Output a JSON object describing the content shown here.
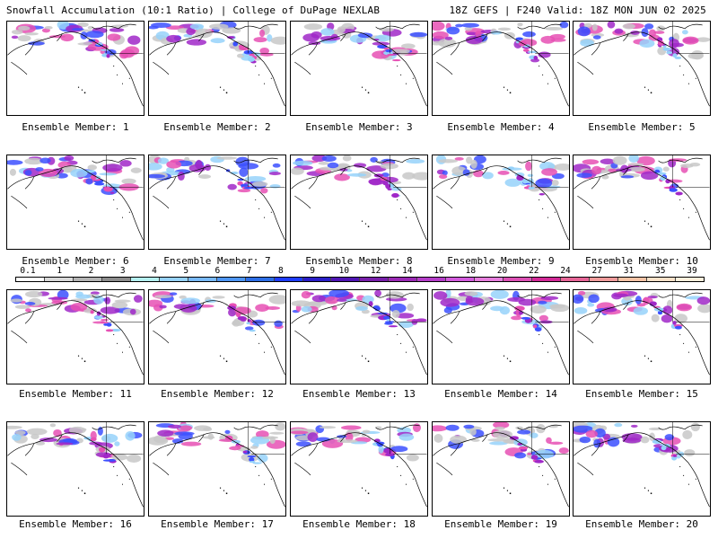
{
  "header": {
    "title_left": "Snowfall Accumulation (10:1 Ratio) | College of DuPage NEXLAB",
    "title_right": "18Z GEFS | F240 Valid: 18Z MON JUN 02 2025"
  },
  "panels": [
    {
      "caption": "Ensemble Member: 1"
    },
    {
      "caption": "Ensemble Member: 2"
    },
    {
      "caption": "Ensemble Member: 3"
    },
    {
      "caption": "Ensemble Member: 4"
    },
    {
      "caption": "Ensemble Member: 5"
    },
    {
      "caption": "Ensemble Member: 6"
    },
    {
      "caption": "Ensemble Member: 7"
    },
    {
      "caption": "Ensemble Member: 8"
    },
    {
      "caption": "Ensemble Member: 9"
    },
    {
      "caption": "Ensemble Member: 10"
    },
    {
      "caption": "Ensemble Member: 11"
    },
    {
      "caption": "Ensemble Member: 12"
    },
    {
      "caption": "Ensemble Member: 13"
    },
    {
      "caption": "Ensemble Member: 14"
    },
    {
      "caption": "Ensemble Member: 15"
    },
    {
      "caption": "Ensemble Member: 16"
    },
    {
      "caption": "Ensemble Member: 17"
    },
    {
      "caption": "Ensemble Member: 18"
    },
    {
      "caption": "Ensemble Member: 19"
    },
    {
      "caption": "Ensemble Member: 20"
    }
  ],
  "colorbar": {
    "labels": [
      "0.1",
      "1",
      "2",
      "3",
      "4",
      "5",
      "6",
      "7",
      "8",
      "9",
      "10",
      "12",
      "14",
      "16",
      "18",
      "20",
      "22",
      "24",
      "27",
      "31",
      "35",
      "39"
    ],
    "colors": [
      "#ffffff",
      "#d9d9d9",
      "#b4b4b4",
      "#8c8c8c",
      "#b4f0f0",
      "#96d2fa",
      "#78b9fa",
      "#4e96f5",
      "#2d6ee6",
      "#1e3cff",
      "#2a1ec8",
      "#5014b4",
      "#781eaa",
      "#9a28b4",
      "#b43cc8",
      "#d25adc",
      "#e67ddc",
      "#dc50b4",
      "#d22896",
      "#e66496",
      "#f09b9b",
      "#f5c3a5",
      "#fae1c8",
      "#fff0dc"
    ]
  },
  "colors": {
    "snow_light": "#c8c8c8",
    "snow_mid": "#96d2fa",
    "snow_blue": "#3c50ff",
    "snow_purple": "#a028c8",
    "snow_pink": "#e650b4",
    "coast": "#000000"
  }
}
